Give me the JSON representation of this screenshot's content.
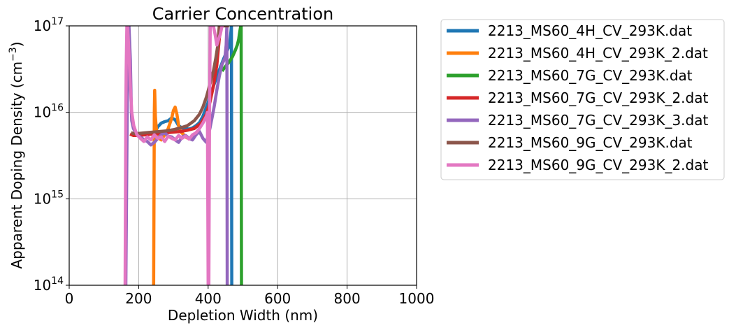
{
  "chart_data": {
    "type": "line",
    "title": "Carrier Concentration",
    "xlabel": "Depletion Width (nm)",
    "ylabel": "Apparent Doping Density (cm",
    "ylabel_sup": "−3",
    "ylabel_close": ")",
    "xlim": [
      0,
      1000
    ],
    "ylim": [
      100000000000000.0,
      1e+17
    ],
    "yscale": "log",
    "grid": true,
    "legend_position": "outside-right",
    "x_ticks": [
      "0",
      "200",
      "400",
      "600",
      "800",
      "1000"
    ],
    "x_tick_values": [
      0,
      200,
      400,
      600,
      800,
      1000
    ],
    "y_ticks": [
      {
        "value": 100000000000000.0,
        "base": "10",
        "exp": "14"
      },
      {
        "value": 1000000000000000.0,
        "base": "10",
        "exp": "15"
      },
      {
        "value": 1e+16,
        "base": "10",
        "exp": "16"
      },
      {
        "value": 1e+17,
        "base": "10",
        "exp": "17"
      }
    ],
    "series": [
      {
        "name": "2213_MS60_4H_CV_293K.dat",
        "color": "#1f77b4",
        "x": [
          248,
          255,
          265,
          275,
          285,
          295,
          305,
          315,
          325,
          335,
          345,
          355,
          365,
          375,
          385,
          395,
          405,
          415,
          425,
          435,
          445,
          455,
          462,
          465,
          467,
          468,
          468
        ],
        "y": [
          6000000000000000.0,
          6800000000000000.0,
          7500000000000000.0,
          7800000000000000.0,
          8000000000000000.0,
          8600000000000000.0,
          8200000000000000.0,
          7000000000000000.0,
          6600000000000000.0,
          6500000000000000.0,
          6400000000000000.0,
          6600000000000000.0,
          7000000000000000.0,
          7600000000000000.0,
          9000000000000000.0,
          1.15e+16,
          1.5e+16,
          2e+16,
          2.6e+16,
          3.3e+16,
          4.2e+16,
          5.2e+16,
          6e+16,
          8e+16,
          1e+17,
          100000000000000.0,
          100000000000000.0
        ]
      },
      {
        "name": "2213_MS60_4H_CV_293K_2.dat",
        "color": "#ff7f0e",
        "x": [
          243,
          244,
          245,
          246,
          248,
          250,
          253,
          258,
          265,
          275,
          285,
          295,
          300,
          305,
          310,
          315,
          320,
          330,
          340
        ],
        "y": [
          100000000000000.0,
          1000000000000000.0,
          1e+16,
          1.8e+16,
          9000000000000000.0,
          7000000000000000.0,
          5500000000000000.0,
          5000000000000000.0,
          4800000000000000.0,
          5500000000000000.0,
          6500000000000000.0,
          8500000000000000.0,
          1.05e+16,
          1.15e+16,
          9500000000000000.0,
          7000000000000000.0,
          6000000000000000.0,
          5500000000000000.0,
          5000000000000000.0
        ]
      },
      {
        "name": "2213_MS60_7G_CV_293K.dat",
        "color": "#2ca02c",
        "x": [
          440,
          450,
          460,
          470,
          478,
          484,
          488,
          490,
          492,
          494,
          495,
          496,
          496
        ],
        "y": [
          3e+16,
          3.4e+16,
          3.8e+16,
          4.4e+16,
          5.2e+16,
          6e+16,
          7e+16,
          8e+16,
          9e+16,
          1e+17,
          1e+17,
          100000000000000.0,
          100000000000000.0
        ]
      },
      {
        "name": "2213_MS60_7G_CV_293K_2.dat",
        "color": "#d62728",
        "x": [
          175,
          185,
          200,
          220,
          240,
          260,
          280,
          300,
          320,
          340,
          360,
          380,
          395,
          405,
          415,
          425,
          432,
          436
        ],
        "y": [
          5600000000000000.0,
          5400000000000000.0,
          5400000000000000.0,
          5500000000000000.0,
          5600000000000000.0,
          5700000000000000.0,
          5800000000000000.0,
          5900000000000000.0,
          6000000000000000.0,
          6200000000000000.0,
          6500000000000000.0,
          7500000000000000.0,
          9500000000000000.0,
          1.3e+16,
          2e+16,
          3.5e+16,
          7e+16,
          1e+17
        ]
      },
      {
        "name": "2213_MS60_7G_CV_293K_3.dat",
        "color": "#9467bd",
        "x": [
          163,
          165,
          167,
          169,
          172,
          176,
          179,
          180,
          185,
          195,
          210,
          225,
          235,
          245,
          255,
          265,
          275,
          285,
          295,
          305,
          315,
          325,
          335,
          345,
          355,
          365,
          375,
          385,
          395,
          405,
          412,
          418,
          425,
          432,
          440,
          448,
          452,
          454,
          455
        ],
        "y": [
          100000000000000.0,
          1000000000000000.0,
          1e+16,
          1e+17,
          1e+17,
          4e+16,
          1e+16,
          8000000000000000.0,
          6500000000000000.0,
          5500000000000000.0,
          5000000000000000.0,
          4600000000000000.0,
          4200000000000000.0,
          4500000000000000.0,
          5000000000000000.0,
          5500000000000000.0,
          5800000000000000.0,
          5300000000000000.0,
          5200000000000000.0,
          4800000000000000.0,
          4500000000000000.0,
          5200000000000000.0,
          5400000000000000.0,
          5000000000000000.0,
          4800000000000000.0,
          5500000000000000.0,
          6000000000000000.0,
          5000000000000000.0,
          4500000000000000.0,
          6500000000000000.0,
          9000000000000000.0,
          1.2e+16,
          1.8e+16,
          2.6e+16,
          3.6e+16,
          4.2e+16,
          6e+16,
          1e+17,
          100000000000000.0
        ]
      },
      {
        "name": "2213_MS60_9G_CV_293K.dat",
        "color": "#8c564b",
        "x": [
          178,
          185,
          200,
          220,
          240,
          260,
          280,
          300,
          320,
          340,
          360,
          375,
          385,
          395,
          405,
          415,
          422,
          428,
          432,
          436,
          440,
          445,
          450,
          455,
          460
        ],
        "y": [
          5800000000000000.0,
          5700000000000000.0,
          5700000000000000.0,
          5800000000000000.0,
          5900000000000000.0,
          6000000000000000.0,
          6100000000000000.0,
          6300000000000000.0,
          6600000000000000.0,
          7000000000000000.0,
          8000000000000000.0,
          9500000000000000.0,
          1.15e+16,
          1.5e+16,
          2.1e+16,
          3e+16,
          4.2e+16,
          6e+16,
          1e+17,
          1e+17,
          1e+17,
          1e+17,
          1e+17,
          1e+17,
          1e+17
        ]
      },
      {
        "name": "2213_MS60_9G_CV_293K_2.dat",
        "color": "#e377c2",
        "x": [
          161,
          162,
          163,
          164,
          166,
          168,
          172,
          176,
          180,
          186,
          195,
          205,
          215,
          225,
          235,
          245,
          255,
          265,
          275,
          285,
          295,
          305,
          315,
          325,
          335,
          345,
          355,
          365,
          375,
          385,
          395,
          398,
          400,
          402,
          404,
          406,
          410,
          415,
          420,
          425,
          430,
          435,
          440,
          445
        ],
        "y": [
          100000000000000.0,
          1000000000000000.0,
          1e+16,
          3e+16,
          1e+17,
          1e+17,
          5e+16,
          2e+16,
          1e+16,
          7000000000000000.0,
          5500000000000000.0,
          5000000000000000.0,
          4600000000000000.0,
          5200000000000000.0,
          4800000000000000.0,
          5500000000000000.0,
          5000000000000000.0,
          5200000000000000.0,
          4600000000000000.0,
          5300000000000000.0,
          5000000000000000.0,
          4800000000000000.0,
          5400000000000000.0,
          5000000000000000.0,
          5300000000000000.0,
          4900000000000000.0,
          5500000000000000.0,
          5800000000000000.0,
          6500000000000000.0,
          7500000000000000.0,
          9000000000000000.0,
          1e+16,
          100000000000000.0,
          100000000000000.0,
          1e+16,
          1e+17,
          1e+17,
          1e+17,
          8e+16,
          6e+16,
          7e+16,
          8e+16,
          1e+17,
          1e+17
        ]
      }
    ]
  }
}
